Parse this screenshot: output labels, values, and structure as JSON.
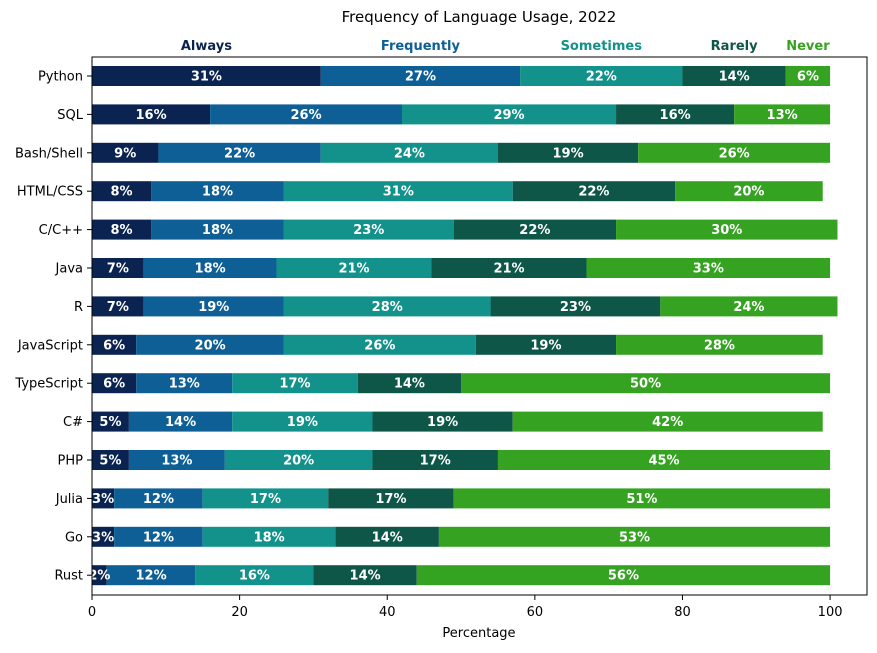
{
  "chart_data": {
    "type": "bar",
    "orientation": "horizontal",
    "stacked": true,
    "title": "Frequency of Language Usage, 2022",
    "xlabel": "Percentage",
    "ylabel": "",
    "xlim": [
      0,
      105
    ],
    "xticks": [
      "0",
      "20",
      "40",
      "60",
      "80",
      "100"
    ],
    "categories": [
      "Python",
      "SQL",
      "Bash/Shell",
      "HTML/CSS",
      "C/C++",
      "Java",
      "R",
      "JavaScript",
      "TypeScript",
      "C#",
      "PHP",
      "Julia",
      "Go",
      "Rust"
    ],
    "series": [
      {
        "name": "Always",
        "color": "#0b2350",
        "values": [
          31,
          16,
          9,
          8,
          8,
          7,
          7,
          6,
          6,
          5,
          5,
          3,
          3,
          2
        ]
      },
      {
        "name": "Frequently",
        "color": "#0e5f96",
        "values": [
          27,
          26,
          22,
          18,
          18,
          18,
          19,
          20,
          13,
          14,
          13,
          12,
          12,
          12
        ]
      },
      {
        "name": "Sometimes",
        "color": "#12928a",
        "values": [
          22,
          29,
          24,
          31,
          23,
          21,
          28,
          26,
          17,
          19,
          20,
          17,
          18,
          16
        ]
      },
      {
        "name": "Rarely",
        "color": "#0e5648",
        "values": [
          14,
          16,
          19,
          22,
          22,
          21,
          23,
          19,
          14,
          19,
          17,
          17,
          14,
          14
        ]
      },
      {
        "name": "Never",
        "color": "#35a321",
        "values": [
          6,
          13,
          26,
          20,
          30,
          33,
          24,
          28,
          50,
          42,
          45,
          51,
          53,
          56
        ]
      }
    ],
    "legend_position": "top",
    "grid": false
  }
}
